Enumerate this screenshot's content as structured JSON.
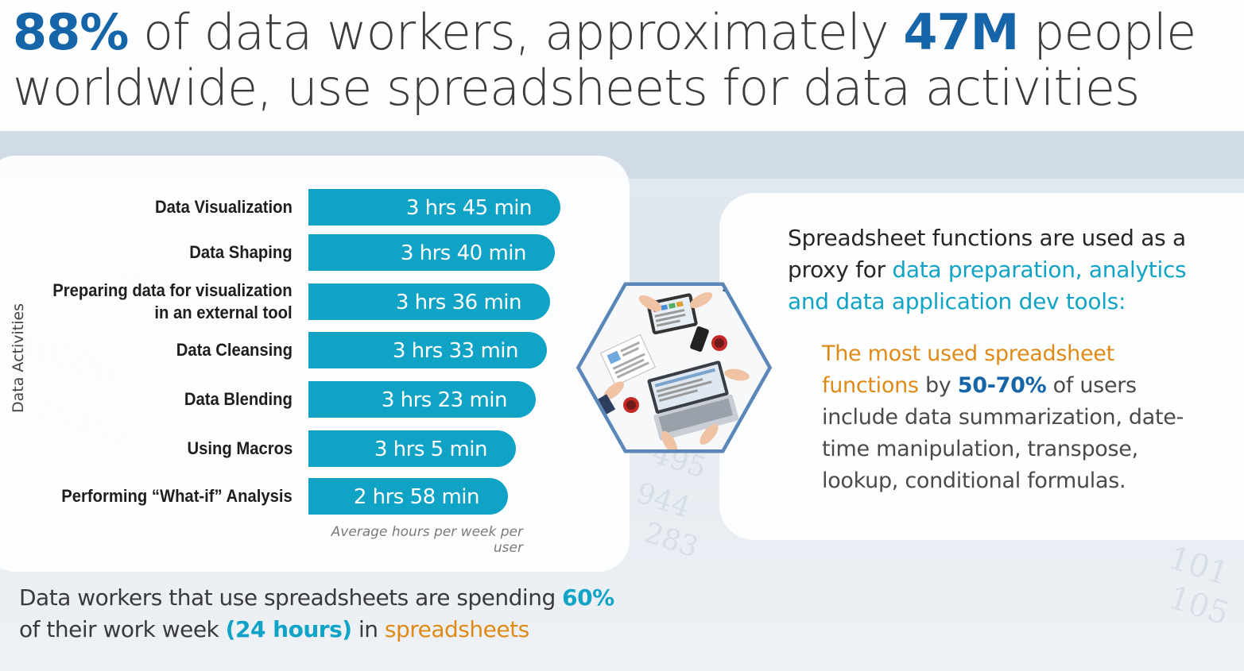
{
  "headline": {
    "part1_strong": "88%",
    "part2": " of data workers, approximately ",
    "part3_strong": "47M",
    "part4": " people worldwide, use spreadsheets for data activities"
  },
  "chart_data": {
    "type": "bar",
    "orientation": "horizontal",
    "ylabel": "Data Activities",
    "note": "Average hours per week per user",
    "categories": [
      "Data Visualization",
      "Data Shaping",
      "Preparing data for visualization in an external tool",
      "Data Cleansing",
      "Data Blending",
      "Using Macros",
      "Performing “What-if” Analysis"
    ],
    "category_lines": [
      [
        "Data Visualization"
      ],
      [
        "Data Shaping"
      ],
      [
        "Preparing data for visualization",
        "in an external tool"
      ],
      [
        "Data Cleansing"
      ],
      [
        "Data Blending"
      ],
      [
        "Using Macros"
      ],
      [
        "Performing “What-if” Analysis"
      ]
    ],
    "values_minutes": [
      225,
      220,
      216,
      213,
      203,
      185,
      178
    ],
    "value_labels": [
      "3 hrs 45 min",
      "3 hrs 40 min",
      "3 hrs 36 min",
      "3 hrs 33 min",
      "3 hrs 23 min",
      "3 hrs 5 min",
      "2 hrs 58 min"
    ],
    "bar_color": "#11a3c5"
  },
  "bottom_statement": {
    "part1": "Data workers that use spreadsheets are spending ",
    "part2_teal": "60%",
    "part3": " of their work week ",
    "part4_teal": "(24 hours)",
    "part5": " in ",
    "part6_orange": "spreadsheets"
  },
  "right_panel": {
    "title_part1": "Spreadsheet functions are used as a proxy for ",
    "title_part2_teal": "data preparation, analytics and data application dev tools:",
    "body_part1_orange": "The most used spreadsheet functions",
    "body_part2": " by ",
    "body_part3_blue": "50-70%",
    "body_part4": " of users include data summarization, date-time manipulation, transpose, lookup, conditional formulas."
  },
  "illustration": {
    "icon": "team-workspace-hexagon-icon"
  },
  "colors": {
    "brand_blue": "#1565a8",
    "teal": "#11a3c5",
    "orange": "#e08a16",
    "hexagon": "#5b86b8"
  }
}
